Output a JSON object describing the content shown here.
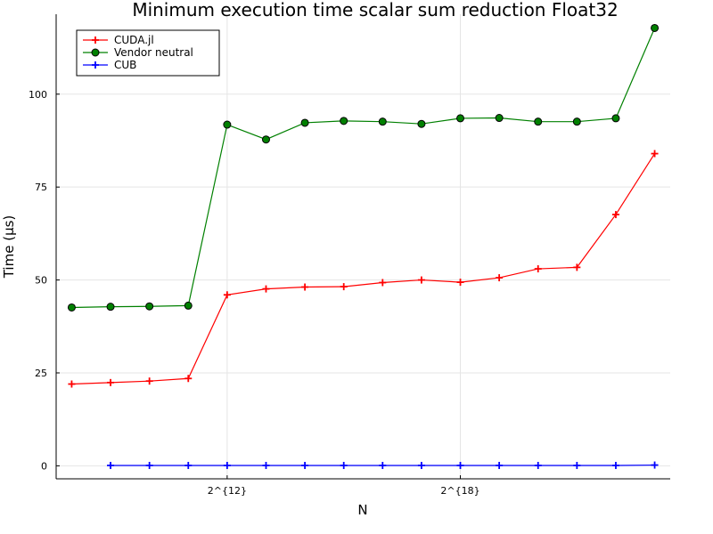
{
  "chart_data": {
    "type": "line",
    "title": "Minimum execution time scalar sum reduction Float32",
    "xlabel": "N",
    "ylabel": "Time (µs)",
    "xscale": "log2",
    "x_exponents": [
      8,
      9,
      10,
      11,
      12,
      13,
      14,
      15,
      16,
      17,
      18,
      19,
      20,
      21,
      22,
      23
    ],
    "xlim_exponent": [
      7.6,
      23.4
    ],
    "ylim": [
      -3.5,
      121.5
    ],
    "x_ticks": [
      {
        "exponent": 12,
        "label": "2^{12}"
      },
      {
        "exponent": 18,
        "label": "2^{18}"
      }
    ],
    "y_ticks": [
      {
        "value": 0,
        "label": "0"
      },
      {
        "value": 25,
        "label": "25"
      },
      {
        "value": 50,
        "label": "50"
      },
      {
        "value": 75,
        "label": "75"
      },
      {
        "value": 100,
        "label": "100"
      }
    ],
    "grid": true,
    "legend_position": "top-left",
    "series": [
      {
        "name": "CUDA.jl",
        "color": "#ff0000",
        "marker": "plus",
        "x_exponents": [
          8,
          9,
          10,
          11,
          12,
          13,
          14,
          15,
          16,
          17,
          18,
          19,
          20,
          21,
          22,
          23
        ],
        "values": [
          22.0,
          22.4,
          22.8,
          23.5,
          46.0,
          47.6,
          48.1,
          48.2,
          49.3,
          50.0,
          49.4,
          50.6,
          53.0,
          53.4,
          67.6,
          84.0
        ]
      },
      {
        "name": "Vendor neutral",
        "color": "#008000",
        "marker": "circle",
        "x_exponents": [
          8,
          9,
          10,
          11,
          12,
          13,
          14,
          15,
          16,
          17,
          18,
          19,
          20,
          21,
          22,
          23
        ],
        "values": [
          42.6,
          42.8,
          42.9,
          43.1,
          91.8,
          87.8,
          92.3,
          92.8,
          92.6,
          92.0,
          93.5,
          93.6,
          92.6,
          92.6,
          93.5,
          117.8
        ]
      },
      {
        "name": "CUB",
        "color": "#0000ff",
        "marker": "plus",
        "x_exponents": [
          9,
          10,
          11,
          12,
          13,
          14,
          15,
          16,
          17,
          18,
          19,
          20,
          21,
          22,
          23
        ],
        "values": [
          0.1,
          0.1,
          0.1,
          0.1,
          0.1,
          0.1,
          0.1,
          0.1,
          0.1,
          0.1,
          0.1,
          0.1,
          0.1,
          0.1,
          0.2
        ]
      }
    ]
  }
}
